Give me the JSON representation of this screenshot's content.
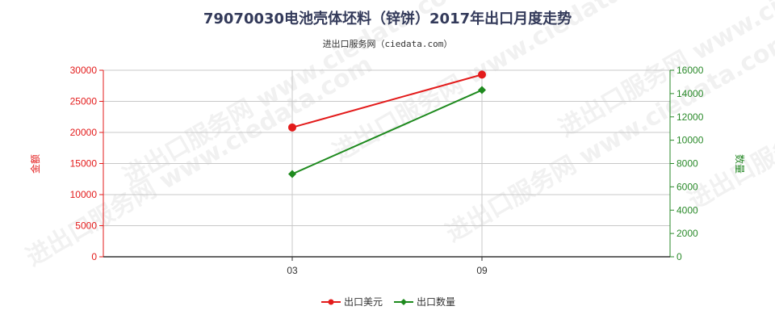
{
  "chart_data": {
    "type": "line",
    "title": "79070030电池壳体坯料（锌饼）2017年出口月度走势",
    "subtitle": "进出口服务网（ciedata.com）",
    "categories": [
      "03",
      "09"
    ],
    "series": [
      {
        "name": "出口美元",
        "axis": "left",
        "color": "#e31b1b",
        "values": [
          20800,
          29300
        ]
      },
      {
        "name": "出口数量",
        "axis": "right",
        "color": "#1e8a1e",
        "values": [
          7100,
          14300
        ]
      }
    ],
    "ylabel_left": "金额",
    "ylabel_right": "数量",
    "ylim_left": [
      0,
      30000
    ],
    "ylim_right": [
      0,
      16000
    ],
    "yticks_left": [
      0,
      5000,
      10000,
      15000,
      20000,
      25000,
      30000
    ],
    "yticks_right": [
      0,
      2000,
      4000,
      6000,
      8000,
      10000,
      12000,
      14000,
      16000
    ],
    "grid": true,
    "legend_position": "bottom"
  },
  "watermark": "进出口服务网 www.ciedata.com"
}
